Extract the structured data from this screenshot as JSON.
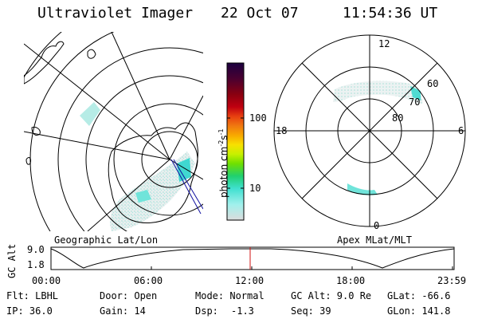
{
  "header": {
    "title": "Ultraviolet Imager",
    "date": "22 Oct 07",
    "time": "11:54:36 UT"
  },
  "left_panel": {
    "label": "Geographic Lat/Lon"
  },
  "right_panel": {
    "label": "Apex MLat/MLT",
    "mlt_labels": {
      "top": "12",
      "bottom": "0",
      "left": "18",
      "right": "6"
    },
    "lat_labels": [
      "60",
      "70",
      "80"
    ]
  },
  "colorbar": {
    "axis_label": "photon cm",
    "sup1": "-2",
    "mid": "s",
    "sup2": "-1",
    "ticks": [
      "100",
      "10"
    ],
    "scale": "log",
    "colors": [
      "#1b0040",
      "#4a0030",
      "#8a0010",
      "#c00010",
      "#e84010",
      "#f07810",
      "#f8a800",
      "#f8e000",
      "#c8f000",
      "#70e000",
      "#20d070",
      "#40e0d0",
      "#a0f0ec",
      "#dcdcdc"
    ]
  },
  "timeline": {
    "y_label": "GC Alt",
    "y_ticks": [
      "9.0",
      "1.8"
    ],
    "x_ticks": [
      "00:00",
      "06:00",
      "12:00",
      "18:00",
      "23:59"
    ],
    "marker_color": "#d01010"
  },
  "info": {
    "filter": "Flt: LBHL",
    "door": "Door: Open",
    "mode": "Mode: Normal",
    "gc_alt": "GC Alt: 9.0 Re",
    "glat": "GLat: -66.6",
    "ip": "IP: 36.0",
    "gain": "Gain: 14",
    "dsp_label": "Dsp:",
    "dsp_value": "-1.3",
    "seq": "Seq: 39",
    "glon": "GLon: 141.8"
  }
}
